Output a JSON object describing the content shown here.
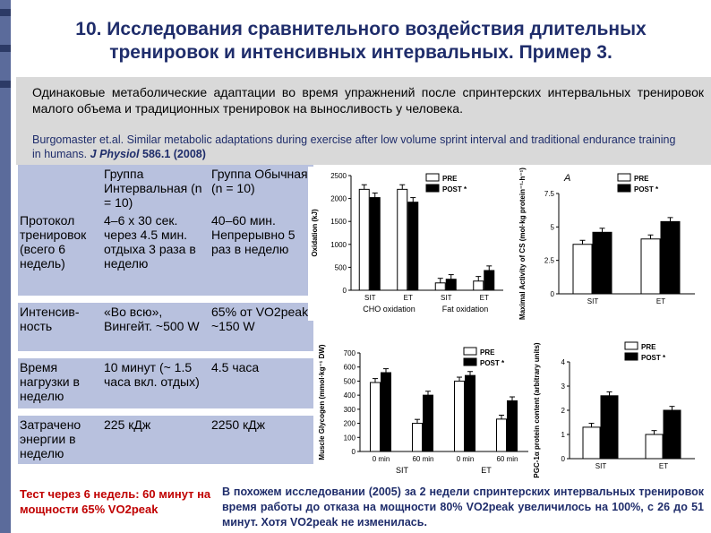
{
  "slide": {
    "title_line1": "10. Исследования сравнительного воздействия длительных",
    "title_line2": "тренировок и интенсивных интервальных. Пример 3.",
    "lead": "Одинаковые метаболические адаптации во время упражнений после спринтерских интервальных тренировок малого объема и традиционных тренировок на выносливость у человека.",
    "citation_main": "Burgomaster et.al. Similar metabolic adaptations during exercise after low volume sprint interval and traditional endurance training in humans.",
    "citation_journal": "J Physiol",
    "citation_tail": "586.1 (2008)"
  },
  "table": {
    "header": [
      "",
      "Группа Интервальная (n = 10)",
      "Группа Обычная (n = 10)"
    ],
    "rows": [
      [
        "Протокол тренировок (всего 6 недель)",
        "4–6 x 30 сек. через 4.5 мин. отдыха 3 раза в неделю",
        "40–60 мин. Непрерывно 5 раз в неделю"
      ],
      [
        "Интенсив-ность",
        "«Во всю», Вингейт. ~500 W",
        "65% от VO2peak, ~150 W"
      ],
      [
        "Время нагрузки в неделю",
        "10 минут (~ 1.5 часа вкл. отдых)",
        "4.5 часа"
      ],
      [
        "Затрачено энергии в неделю",
        "225 кДж",
        "2250 кДж"
      ]
    ]
  },
  "notes": {
    "left": "Тест через 6 недель: 60 минут на мощности 65% VO2peak",
    "right": "В похожем исследовании (2005) за 2 недели спринтерских интервальных тренировок время работы до отказа на мощности 80% VO2peak увеличилось на 100%, с 26 до 51 минут. Хотя VO2peak не изменилась."
  },
  "colors": {
    "title": "#1f2d6b",
    "table_fill": "#b8c1de",
    "note_red": "#c00000",
    "pre": "#ffffff",
    "post": "#000000"
  },
  "chart_data": [
    {
      "type": "bar",
      "panel": "oxidation",
      "ylabel": "Oxidation (kJ)",
      "ylim": [
        0,
        2500
      ],
      "yticks": [
        0,
        500,
        1000,
        1500,
        2000,
        2500
      ],
      "categories": [
        "SIT",
        "ET",
        "SIT",
        "ET"
      ],
      "group_labels": [
        "CHO oxidation",
        "Fat oxidation"
      ],
      "legend": [
        "PRE",
        "POST *"
      ],
      "series": [
        {
          "name": "PRE",
          "values": [
            2200,
            2200,
            160,
            200
          ]
        },
        {
          "name": "POST *",
          "values": [
            2020,
            1920,
            240,
            430
          ]
        }
      ]
    },
    {
      "type": "bar",
      "panel": "cs",
      "ylabel": "Maximal Activity of CS (mol·kg protein⁻¹·h⁻¹)",
      "ylim": [
        0,
        7.5
      ],
      "yticks": [
        0,
        2.5,
        5,
        7.5
      ],
      "categories": [
        "SIT",
        "ET"
      ],
      "panel_label": "A",
      "legend": [
        "PRE",
        "POST *"
      ],
      "series": [
        {
          "name": "PRE",
          "values": [
            3.7,
            4.1
          ]
        },
        {
          "name": "POST *",
          "values": [
            4.6,
            5.4
          ]
        }
      ]
    },
    {
      "type": "bar",
      "panel": "glycogen",
      "ylabel": "Muscle Glycogen (mmol·kg⁻¹ DW)",
      "ylim": [
        0,
        700
      ],
      "yticks": [
        0,
        100,
        200,
        300,
        400,
        500,
        600,
        700
      ],
      "categories": [
        "0 min",
        "60 min",
        "0 min",
        "60 min"
      ],
      "group_labels": [
        "SIT",
        "ET"
      ],
      "legend": [
        "PRE",
        "POST *"
      ],
      "series": [
        {
          "name": "PRE",
          "values": [
            490,
            200,
            500,
            230
          ]
        },
        {
          "name": "POST *",
          "values": [
            560,
            400,
            540,
            360
          ]
        }
      ]
    },
    {
      "type": "bar",
      "panel": "pgc",
      "ylabel": "PGC-1α protein content (arbitrary units)",
      "ylim": [
        0,
        4
      ],
      "yticks": [
        0,
        1,
        2,
        3,
        4
      ],
      "categories": [
        "SIT",
        "ET"
      ],
      "legend": [
        "PRE",
        "POST *"
      ],
      "series": [
        {
          "name": "PRE",
          "values": [
            1.3,
            1.0
          ]
        },
        {
          "name": "POST *",
          "values": [
            2.6,
            2.0
          ]
        }
      ]
    }
  ]
}
